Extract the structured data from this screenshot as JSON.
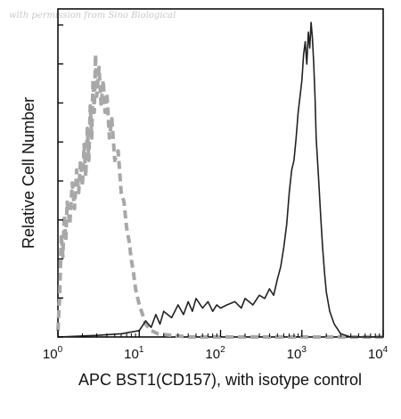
{
  "watermark": "with permission from Sino Biological",
  "chart_data": {
    "type": "line",
    "xlabel": "APC BST1(CD157), with isotype control",
    "ylabel": "Relative Cell Number",
    "x_scale": "log",
    "xlim": [
      1,
      10000
    ],
    "ylim": [
      0,
      1
    ],
    "x_ticks": [
      {
        "value": 1,
        "base": "10",
        "exp": "0"
      },
      {
        "value": 10,
        "base": "10",
        "exp": "1"
      },
      {
        "value": 100,
        "base": "10",
        "exp": "2"
      },
      {
        "value": 1000,
        "base": "10",
        "exp": "3"
      },
      {
        "value": 10000,
        "base": "10",
        "exp": "4"
      }
    ],
    "grid": false,
    "legend": "none",
    "series": [
      {
        "style": "dashed",
        "color": "#a8a8a8",
        "points": [
          [
            1.0,
            0.02
          ],
          [
            1.05,
            0.12
          ],
          [
            1.1,
            0.32
          ],
          [
            1.15,
            0.25
          ],
          [
            1.2,
            0.38
          ],
          [
            1.25,
            0.3
          ],
          [
            1.3,
            0.42
          ],
          [
            1.4,
            0.35
          ],
          [
            1.5,
            0.48
          ],
          [
            1.6,
            0.4
          ],
          [
            1.7,
            0.52
          ],
          [
            1.8,
            0.45
          ],
          [
            1.9,
            0.55
          ],
          [
            2.0,
            0.47
          ],
          [
            2.1,
            0.6
          ],
          [
            2.2,
            0.5
          ],
          [
            2.3,
            0.65
          ],
          [
            2.4,
            0.55
          ],
          [
            2.5,
            0.72
          ],
          [
            2.6,
            0.62
          ],
          [
            2.7,
            0.8
          ],
          [
            2.8,
            0.7
          ],
          [
            2.9,
            0.88
          ],
          [
            3.0,
            0.75
          ],
          [
            3.2,
            0.84
          ],
          [
            3.4,
            0.72
          ],
          [
            3.6,
            0.8
          ],
          [
            3.8,
            0.7
          ],
          [
            4.0,
            0.76
          ],
          [
            4.3,
            0.62
          ],
          [
            4.6,
            0.68
          ],
          [
            5.0,
            0.55
          ],
          [
            5.5,
            0.58
          ],
          [
            6.0,
            0.45
          ],
          [
            6.5,
            0.42
          ],
          [
            7.0,
            0.34
          ],
          [
            7.5,
            0.3
          ],
          [
            8.0,
            0.24
          ],
          [
            8.5,
            0.2
          ],
          [
            9.0,
            0.15
          ],
          [
            10.0,
            0.1
          ],
          [
            11.0,
            0.07
          ],
          [
            12.0,
            0.04
          ],
          [
            14.0,
            0.02
          ],
          [
            17.0,
            0.01
          ],
          [
            25.0,
            0.005
          ],
          [
            40.0,
            0.0
          ],
          [
            100.0,
            0.0
          ],
          [
            1000.0,
            0.0
          ],
          [
            10000.0,
            0.0
          ]
        ]
      },
      {
        "style": "solid",
        "color": "#222222",
        "points": [
          [
            1.0,
            0.0
          ],
          [
            3.0,
            0.005
          ],
          [
            6.0,
            0.01
          ],
          [
            10.0,
            0.02
          ],
          [
            12.0,
            0.05
          ],
          [
            14.0,
            0.03
          ],
          [
            16.0,
            0.07
          ],
          [
            18.0,
            0.04
          ],
          [
            20.0,
            0.08
          ],
          [
            25.0,
            0.06
          ],
          [
            30.0,
            0.1
          ],
          [
            35.0,
            0.07
          ],
          [
            40.0,
            0.11
          ],
          [
            45.0,
            0.08
          ],
          [
            50.0,
            0.12
          ],
          [
            60.0,
            0.09
          ],
          [
            70.0,
            0.11
          ],
          [
            80.0,
            0.08
          ],
          [
            90.0,
            0.1
          ],
          [
            100.0,
            0.09
          ],
          [
            120.0,
            0.1
          ],
          [
            150.0,
            0.11
          ],
          [
            180.0,
            0.09
          ],
          [
            200.0,
            0.12
          ],
          [
            250.0,
            0.1
          ],
          [
            300.0,
            0.13
          ],
          [
            350.0,
            0.12
          ],
          [
            400.0,
            0.15
          ],
          [
            450.0,
            0.13
          ],
          [
            500.0,
            0.18
          ],
          [
            550.0,
            0.22
          ],
          [
            600.0,
            0.28
          ],
          [
            650.0,
            0.35
          ],
          [
            700.0,
            0.45
          ],
          [
            750.0,
            0.52
          ],
          [
            800.0,
            0.55
          ],
          [
            850.0,
            0.62
          ],
          [
            900.0,
            0.7
          ],
          [
            950.0,
            0.75
          ],
          [
            1000.0,
            0.8
          ],
          [
            1050.0,
            0.88
          ],
          [
            1100.0,
            0.92
          ],
          [
            1150.0,
            0.85
          ],
          [
            1200.0,
            0.95
          ],
          [
            1250.0,
            0.9
          ],
          [
            1300.0,
            0.98
          ],
          [
            1350.0,
            0.93
          ],
          [
            1400.0,
            0.85
          ],
          [
            1450.0,
            0.75
          ],
          [
            1500.0,
            0.62
          ],
          [
            1600.0,
            0.5
          ],
          [
            1700.0,
            0.38
          ],
          [
            1800.0,
            0.28
          ],
          [
            1900.0,
            0.2
          ],
          [
            2000.0,
            0.14
          ],
          [
            2200.0,
            0.08
          ],
          [
            2500.0,
            0.04
          ],
          [
            3000.0,
            0.01
          ],
          [
            4000.0,
            0.0
          ],
          [
            10000.0,
            0.0
          ]
        ]
      }
    ]
  }
}
